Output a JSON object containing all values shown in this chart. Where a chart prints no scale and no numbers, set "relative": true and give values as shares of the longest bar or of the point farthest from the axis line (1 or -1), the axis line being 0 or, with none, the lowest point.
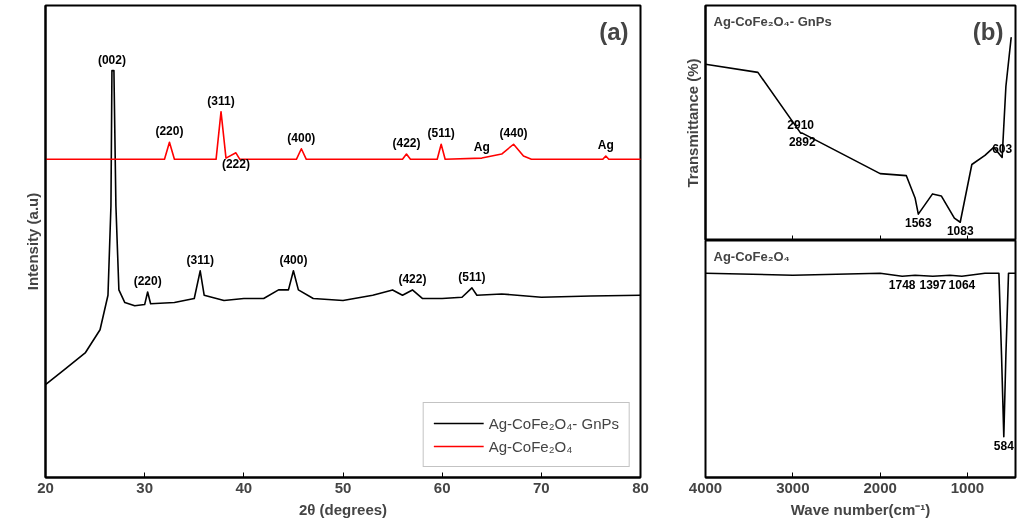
{
  "chart_data": [
    {
      "type": "line",
      "relative": true,
      "xlabel": "2θ (degrees)",
      "ylabel": "Intensity (a.u)",
      "xlim": [
        20,
        80
      ],
      "xticks": [
        20,
        30,
        40,
        50,
        60,
        70,
        80
      ],
      "legend": "bottom right",
      "grid": false,
      "series": [
        {
          "name": "Ag-CoFe₂O₄- GnPs",
          "color": "#000000",
          "x": [
            20,
            22,
            24,
            25.5,
            26.3,
            26.6,
            26.7,
            26.9,
            27.1,
            27.4,
            28,
            29,
            30,
            30.3,
            30.6,
            33,
            35,
            35.6,
            36,
            38,
            40,
            42,
            43.5,
            44.5,
            45,
            45.5,
            47,
            50,
            53,
            55,
            56,
            57,
            58,
            60,
            62,
            63,
            63.5,
            66,
            70,
            75,
            80
          ],
          "values": [
            0.228,
            0.267,
            0.306,
            0.363,
            0.448,
            0.668,
            1.0,
            1.0,
            0.668,
            0.461,
            0.43,
            0.422,
            0.425,
            0.456,
            0.427,
            0.43,
            0.44,
            0.508,
            0.448,
            0.435,
            0.44,
            0.44,
            0.461,
            0.461,
            0.508,
            0.461,
            0.44,
            0.435,
            0.448,
            0.461,
            0.448,
            0.461,
            0.44,
            0.44,
            0.443,
            0.466,
            0.448,
            0.451,
            0.443,
            0.446,
            0.448
          ]
        },
        {
          "name": "Ag-CoFe₂O₄",
          "color": "#ff0000",
          "x": [
            20,
            32,
            32.5,
            33,
            37.2,
            37.7,
            38.2,
            39.2,
            39.6,
            45.3,
            45.8,
            46.3,
            56,
            56.4,
            56.8,
            59.5,
            59.9,
            60.3,
            64,
            66,
            67.2,
            68.2,
            69,
            76.2,
            76.5,
            76.8,
            80
          ],
          "values": [
            0.782,
            0.782,
            0.824,
            0.782,
            0.782,
            0.899,
            0.785,
            0.798,
            0.782,
            0.782,
            0.808,
            0.782,
            0.782,
            0.795,
            0.782,
            0.782,
            0.819,
            0.782,
            0.785,
            0.795,
            0.819,
            0.79,
            0.782,
            0.782,
            0.79,
            0.782,
            0.782
          ]
        }
      ],
      "annotations": [
        "(a)",
        {
          "text": "(002)",
          "x": 26.7,
          "y": 1.0
        },
        {
          "text": "(220)",
          "x": 32.5,
          "y": 0.824
        },
        {
          "text": "(311)",
          "x": 37.7,
          "y": 0.899
        },
        {
          "text": "(222)",
          "x": 39.2,
          "y": 0.798
        },
        {
          "text": "(400)",
          "x": 45.8,
          "y": 0.808
        },
        {
          "text": "(422)",
          "x": 56.4,
          "y": 0.795
        },
        {
          "text": "(511)",
          "x": 59.9,
          "y": 0.819
        },
        {
          "text": "Ag",
          "x": 64,
          "y": 0.785
        },
        {
          "text": "(440)",
          "x": 67.2,
          "y": 0.819
        },
        {
          "text": "Ag",
          "x": 76.5,
          "y": 0.79
        },
        {
          "text": "(220)",
          "x": 30.3,
          "y": 0.456
        },
        {
          "text": "(311)",
          "x": 35.6,
          "y": 0.508
        },
        {
          "text": "(400)",
          "x": 45,
          "y": 0.508
        },
        {
          "text": "(422)",
          "x": 57,
          "y": 0.461
        },
        {
          "text": "(511)",
          "x": 63,
          "y": 0.466
        }
      ]
    },
    {
      "type": "line",
      "relative": true,
      "ylabel": "Transmittance (%)",
      "xlim": [
        4000,
        450
      ],
      "xticks": [
        4000,
        3000,
        2000,
        1000
      ],
      "tick_labels": false,
      "grid": false,
      "series": [
        {
          "name": "Ag-CoFe₂O₄- GnPs",
          "color": "#000000",
          "x": [
            4000,
            3400,
            2910,
            2892,
            2000,
            1700,
            1600,
            1563,
            1400,
            1300,
            1150,
            1083,
            950,
            800,
            700,
            603,
            560,
            500
          ],
          "values": [
            0.87,
            0.83,
            0.53,
            0.53,
            0.33,
            0.32,
            0.21,
            0.13,
            0.23,
            0.22,
            0.11,
            0.09,
            0.375,
            0.42,
            0.46,
            0.41,
            0.76,
            1.0
          ]
        }
      ],
      "annotations": [
        "(b)",
        {
          "text": "2910",
          "x": 2910,
          "y": 0.53
        },
        {
          "text": "2892",
          "x": 2892,
          "y": 0.53
        },
        {
          "text": "1563",
          "x": 1563,
          "y": 0.13
        },
        {
          "text": "1083",
          "x": 1083,
          "y": 0.09
        },
        {
          "text": "603",
          "x": 603,
          "y": 0.41
        }
      ]
    },
    {
      "type": "line",
      "relative": true,
      "xlabel": "Wave number(cm⁻¹)",
      "xlim": [
        4000,
        450
      ],
      "xticks": [
        4000,
        3000,
        2000,
        1000
      ],
      "tick_labels": "x",
      "grid": false,
      "series": [
        {
          "name": "Ag-CoFe₂O₄",
          "color": "#000000",
          "x": [
            4000,
            3000,
            2000,
            1748,
            1600,
            1397,
            1200,
            1064,
            800,
            640,
            610,
            584,
            560,
            530,
            450
          ],
          "values": [
            1.0,
            0.99,
            1.0,
            0.985,
            0.99,
            0.985,
            0.99,
            0.985,
            1.0,
            1.0,
            0.6,
            0.2,
            0.6,
            1.0,
            1.0
          ]
        }
      ],
      "annotations": [
        {
          "text": "1748",
          "x": 1748,
          "y": 0.985
        },
        {
          "text": "1397",
          "x": 1397,
          "y": 0.985
        },
        {
          "text": "1064",
          "x": 1064,
          "y": 0.985
        },
        {
          "text": "584",
          "x": 584,
          "y": 0.2
        }
      ]
    }
  ]
}
